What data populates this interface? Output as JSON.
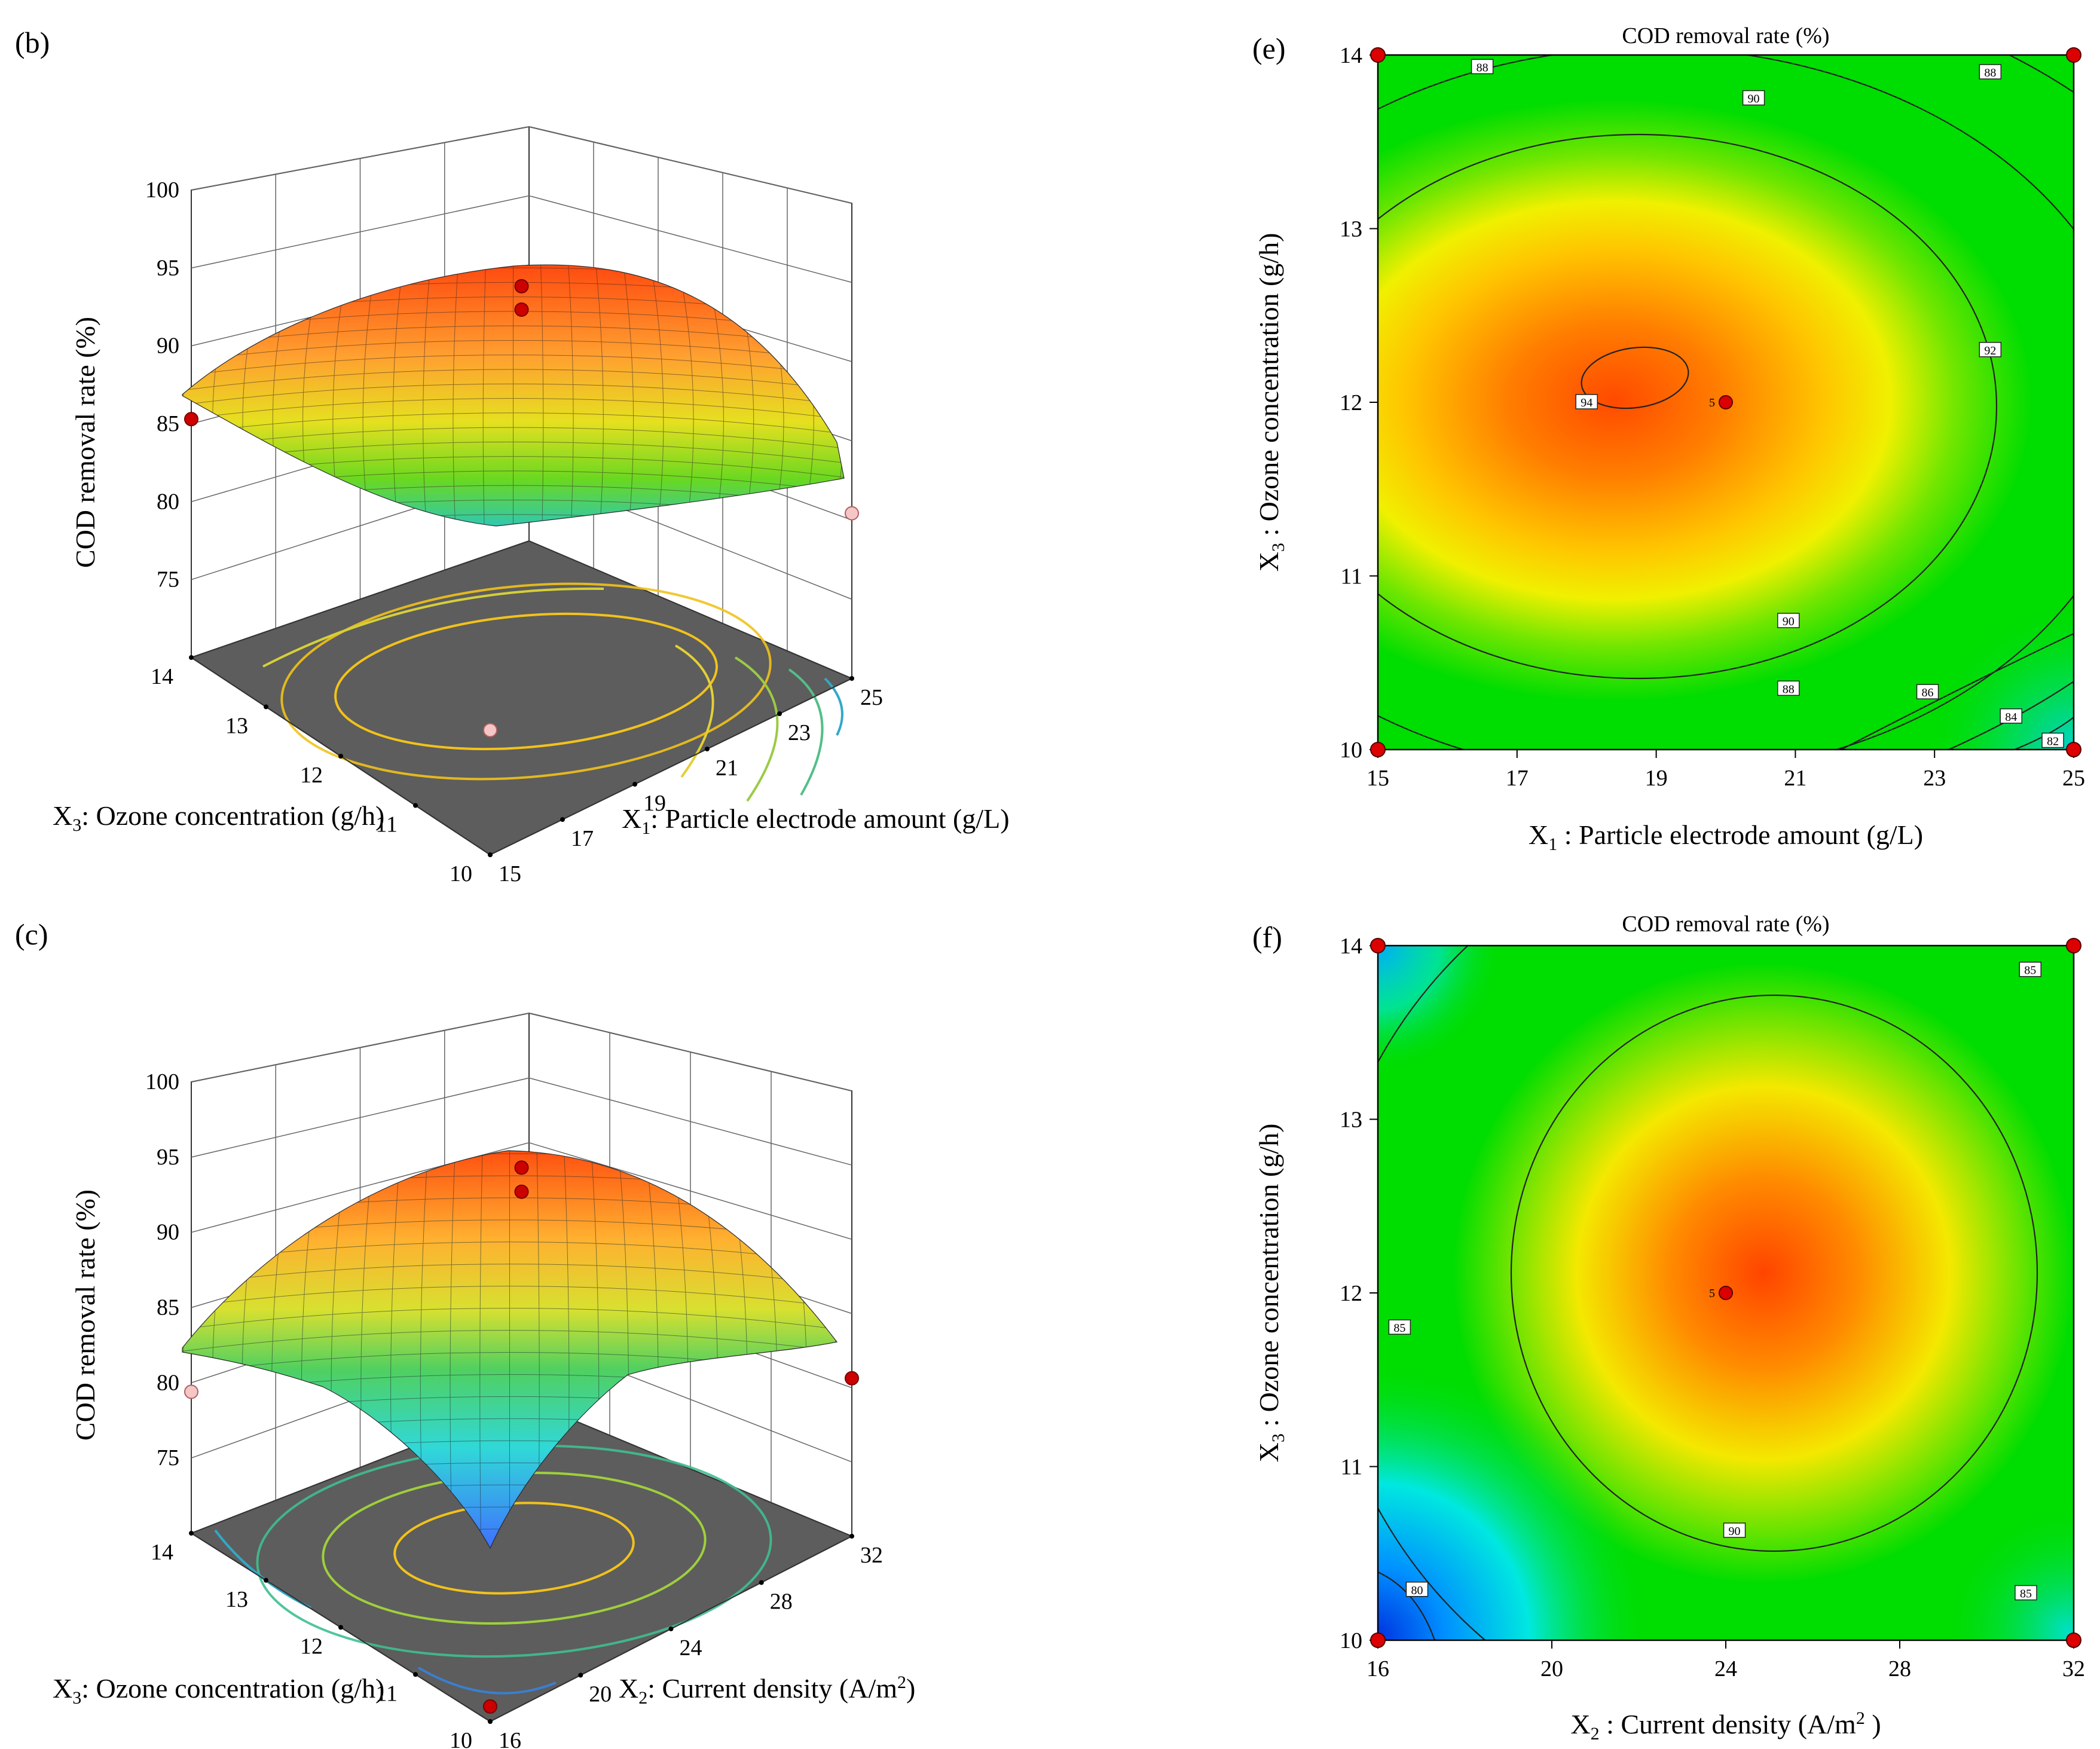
{
  "chart_data": [
    {
      "id": "b",
      "panel_label": "(b)",
      "type": "surface3d",
      "zlabel": "COD removal rate (%)",
      "z_ticks": [
        "100",
        "95",
        "90",
        "85",
        "80",
        "75"
      ],
      "xlabel_pre": "X",
      "xlabel_sub": "1",
      "xlabel_post": ": Particle electrode amount (g/L)",
      "x_ticks": [
        "15",
        "17",
        "19",
        "21",
        "23",
        "25"
      ],
      "ylabel_pre": "X",
      "ylabel_sub": "3",
      "ylabel_post": ": Ozone concentration (g/h)",
      "y_ticks": [
        "10",
        "11",
        "12",
        "13",
        "14"
      ],
      "x_range": [
        15,
        25
      ],
      "y_range": [
        10,
        14
      ],
      "z_range": [
        70,
        100
      ],
      "peak": {
        "x1": 18.6,
        "x3": 12.1,
        "cod": 94.3
      },
      "design_points": [
        {
          "x": 15,
          "y": 14,
          "z": 85.3,
          "above": true
        },
        {
          "x": 20,
          "y": 12,
          "z": 94.5,
          "above": true
        },
        {
          "x": 20,
          "y": 12,
          "z": 93.0,
          "above": true
        },
        {
          "x": 25,
          "y": 10,
          "z": 80.6,
          "above": false
        },
        {
          "x": 15,
          "y": 10,
          "z": 78.0,
          "above": false
        }
      ]
    },
    {
      "id": "c",
      "panel_label": "(c)",
      "type": "surface3d",
      "zlabel": "COD removal rate (%)",
      "z_ticks": [
        "100",
        "95",
        "90",
        "85",
        "80",
        "75"
      ],
      "xlabel_pre": "X",
      "xlabel_sub": "2",
      "xlabel_post": ": Current density (A/m",
      "xlabel_sup": "2",
      "xlabel_end": ")",
      "x_ticks": [
        "16",
        "20",
        "24",
        "28",
        "32"
      ],
      "ylabel_pre": "X",
      "ylabel_sub": "3",
      "ylabel_post": ": Ozone concentration (g/h)",
      "y_ticks": [
        "10",
        "11",
        "12",
        "13",
        "14"
      ],
      "x_range": [
        16,
        32
      ],
      "y_range": [
        10,
        14
      ],
      "z_range": [
        70,
        100
      ],
      "peak": {
        "x2": 24,
        "x3": 12,
        "cod": 94.0
      },
      "design_points": [
        {
          "x": 16,
          "y": 14,
          "z": 79.4,
          "above": false
        },
        {
          "x": 24,
          "y": 12,
          "z": 94.4,
          "above": true
        },
        {
          "x": 24,
          "y": 12,
          "z": 92.8,
          "above": true
        },
        {
          "x": 32,
          "y": 10,
          "z": 80.5,
          "above": true
        },
        {
          "x": 16,
          "y": 10,
          "z": 71.0,
          "above": true
        }
      ]
    },
    {
      "id": "e",
      "panel_label": "(e)",
      "type": "contour",
      "title": "COD removal rate (%)",
      "xlabel_pre": "X",
      "xlabel_sub": "1",
      "xlabel_post": " : Particle electrode amount (g/L)",
      "ylabel_pre": "X",
      "ylabel_sub": "3",
      "ylabel_post": " : Ozone concentration (g/h)",
      "x_ticks": [
        "15",
        "17",
        "19",
        "21",
        "23",
        "25"
      ],
      "y_ticks": [
        "10",
        "11",
        "12",
        "13",
        "14"
      ],
      "xlim": [
        15,
        25
      ],
      "ylim": [
        10,
        14
      ],
      "center_label": "5",
      "contour_labels": [
        {
          "text": "88",
          "x": 16.5,
          "y": 13.93
        },
        {
          "text": "88",
          "x": 23.8,
          "y": 13.9
        },
        {
          "text": "90",
          "x": 20.4,
          "y": 13.75
        },
        {
          "text": "92",
          "x": 23.8,
          "y": 12.3
        },
        {
          "text": "94",
          "x": 18.0,
          "y": 12.0
        },
        {
          "text": "90",
          "x": 20.9,
          "y": 10.74
        },
        {
          "text": "88",
          "x": 20.9,
          "y": 10.35
        },
        {
          "text": "86",
          "x": 22.9,
          "y": 10.33
        },
        {
          "text": "84",
          "x": 24.1,
          "y": 10.19
        },
        {
          "text": "82",
          "x": 24.7,
          "y": 10.05
        }
      ],
      "design_points": [
        {
          "x": 15,
          "y": 14
        },
        {
          "x": 25,
          "y": 14
        },
        {
          "x": 15,
          "y": 10
        },
        {
          "x": 25,
          "y": 10
        },
        {
          "x": 20,
          "y": 12
        }
      ]
    },
    {
      "id": "f",
      "panel_label": "(f)",
      "type": "contour",
      "title": "COD removal rate (%)",
      "xlabel_pre": "X",
      "xlabel_sub": "2",
      "xlabel_post": " : Current density (A/m",
      "xlabel_sup": "2",
      "xlabel_end": " )",
      "ylabel_pre": "X",
      "ylabel_sub": "3",
      "ylabel_post": " : Ozone concentration (g/h)",
      "x_ticks": [
        "16",
        "20",
        "24",
        "28",
        "32"
      ],
      "y_ticks": [
        "10",
        "11",
        "12",
        "13",
        "14"
      ],
      "xlim": [
        16,
        32
      ],
      "ylim": [
        10,
        14
      ],
      "center_label": "5",
      "contour_labels": [
        {
          "text": "85",
          "x": 31.0,
          "y": 13.86
        },
        {
          "text": "85",
          "x": 16.5,
          "y": 11.8
        },
        {
          "text": "90",
          "x": 24.2,
          "y": 10.63
        },
        {
          "text": "85",
          "x": 30.9,
          "y": 10.27
        },
        {
          "text": "80",
          "x": 16.9,
          "y": 10.29
        }
      ],
      "design_points": [
        {
          "x": 16,
          "y": 14
        },
        {
          "x": 32,
          "y": 14
        },
        {
          "x": 16,
          "y": 10
        },
        {
          "x": 32,
          "y": 10
        },
        {
          "x": 24,
          "y": 12
        }
      ]
    }
  ]
}
